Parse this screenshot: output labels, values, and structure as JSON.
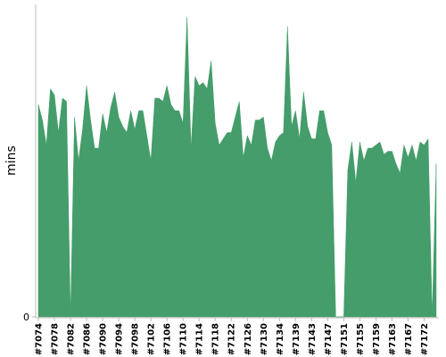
{
  "chart_data": {
    "type": "area",
    "y_label": "mins",
    "color": "#449d6a",
    "ylim": [
      0,
      100
    ],
    "yticks": [
      0
    ],
    "categories": [
      "#7074",
      null,
      null,
      null,
      "#7078",
      null,
      null,
      null,
      "#7082",
      null,
      null,
      null,
      "#7086",
      null,
      null,
      null,
      "#7090",
      null,
      null,
      null,
      "#7094",
      null,
      null,
      null,
      "#7098",
      null,
      null,
      null,
      "#7102",
      null,
      null,
      null,
      "#7106",
      null,
      null,
      null,
      "#7110",
      null,
      null,
      null,
      "#7114",
      null,
      null,
      null,
      "#7118",
      null,
      null,
      null,
      "#7122",
      null,
      null,
      null,
      "#7126",
      null,
      null,
      null,
      "#7130",
      null,
      null,
      null,
      "#7134",
      null,
      null,
      null,
      "#7139",
      null,
      null,
      null,
      "#7143",
      null,
      null,
      null,
      "#7147",
      null,
      null,
      null,
      "#7151",
      null,
      null,
      null,
      "#7155",
      null,
      null,
      null,
      "#7159",
      null,
      null,
      null,
      "#7163",
      null,
      null,
      null,
      "#7167",
      null,
      null,
      null,
      "#7172",
      null,
      null,
      null
    ],
    "values": [
      68,
      63,
      55,
      73,
      71,
      59,
      70,
      69,
      0,
      64,
      50,
      60,
      74,
      63,
      54,
      54,
      65,
      59,
      67,
      72,
      64,
      61,
      59,
      66,
      60,
      66,
      66,
      58,
      50,
      70,
      70,
      69,
      74,
      68,
      66,
      66,
      62,
      96,
      54,
      77,
      74,
      75,
      73,
      82,
      62,
      55,
      57,
      59,
      59,
      64,
      69,
      51,
      58,
      55,
      63,
      63,
      64,
      54,
      50,
      56,
      58,
      59,
      93,
      61,
      66,
      57,
      72,
      61,
      57,
      57,
      66,
      66,
      59,
      55,
      0,
      0,
      0,
      47,
      56,
      43,
      56,
      50,
      54,
      54,
      55,
      56,
      52,
      53,
      53,
      49,
      46,
      55,
      51,
      55,
      50,
      56,
      55,
      57,
      0,
      49
    ]
  }
}
